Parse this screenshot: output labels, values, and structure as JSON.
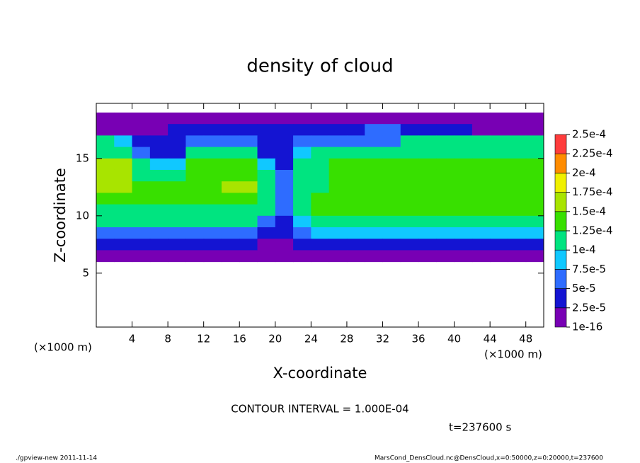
{
  "chart_data": {
    "type": "shaded-contour",
    "title": "density of cloud",
    "x_label": "X-coordinate",
    "y_label": "Z-coordinate",
    "x_unit": "(×1000 m)",
    "y_unit": "(×1000 m)",
    "contour_note": "CONTOUR INTERVAL = 1.000E-04",
    "time_note": "t=237600 s",
    "footer_left": "./gpview-new   2011-11-14",
    "footer_right": "MarsCond_DensCloud.nc@DensCloud,x=0:50000,z=0:20000,t=237600",
    "xlim": [
      0,
      50
    ],
    "ylim": [
      0.3,
      19.8
    ],
    "xticks": [
      4,
      8,
      12,
      16,
      20,
      24,
      28,
      32,
      36,
      40,
      44,
      48
    ],
    "yticks": [
      5,
      10,
      15
    ],
    "x": [
      1,
      3,
      5,
      7,
      9,
      11,
      13,
      15,
      17,
      19,
      21,
      23,
      25,
      27,
      29,
      31,
      33,
      35,
      37,
      39,
      41,
      43,
      45,
      47,
      49
    ],
    "z": [
      18.5,
      17.5,
      16.5,
      15.5,
      14.5,
      13.5,
      12.5,
      11.5,
      10.5,
      9.5,
      8.5,
      7.5,
      6.5
    ],
    "values": [
      [
        1e-05,
        1e-05,
        1e-05,
        1e-05,
        1e-05,
        1e-05,
        1e-05,
        1e-05,
        1e-05,
        1e-05,
        1e-05,
        1e-05,
        1e-05,
        1e-05,
        1e-05,
        1e-05,
        1e-05,
        1e-05,
        1e-05,
        1e-05,
        1e-05,
        1e-05,
        1e-05,
        1e-05,
        1e-05
      ],
      [
        1e-05,
        1e-05,
        1e-05,
        1e-05,
        3e-05,
        3e-05,
        3e-05,
        3e-05,
        3e-05,
        3e-05,
        3e-05,
        4e-05,
        4e-05,
        4e-05,
        4e-05,
        6e-05,
        6e-05,
        3e-05,
        3e-05,
        3e-05,
        3e-05,
        1e-05,
        1e-05,
        1e-05,
        1e-05
      ],
      [
        0.0001,
        8e-05,
        4e-05,
        4e-05,
        4e-05,
        7e-05,
        7e-05,
        7e-05,
        7e-05,
        4e-05,
        4e-05,
        7e-05,
        7e-05,
        7e-05,
        7e-05,
        7e-05,
        7e-05,
        0.0001,
        0.0001,
        0.0001,
        0.0001,
        0.0001,
        0.0001,
        0.0001,
        0.0001
      ],
      [
        0.00012,
        0.00012,
        5e-05,
        4e-05,
        4e-05,
        0.00011,
        0.00011,
        0.00011,
        0.00011,
        4e-05,
        4e-05,
        8e-05,
        0.0001,
        0.0001,
        0.0001,
        0.00012,
        0.00012,
        0.00012,
        0.00012,
        0.00012,
        0.00012,
        0.00012,
        0.00012,
        0.00012,
        0.00012
      ],
      [
        0.00015,
        0.00015,
        0.00012,
        8e-05,
        8e-05,
        0.00013,
        0.00013,
        0.00013,
        0.00013,
        8e-05,
        4e-05,
        0.00011,
        0.00011,
        0.00013,
        0.00013,
        0.00013,
        0.00013,
        0.00013,
        0.00013,
        0.00013,
        0.00013,
        0.00013,
        0.00013,
        0.00013,
        0.00013
      ],
      [
        0.00016,
        0.00016,
        0.00012,
        0.00012,
        0.00012,
        0.00014,
        0.00014,
        0.00014,
        0.00014,
        0.0001,
        5e-05,
        0.00012,
        0.00012,
        0.00014,
        0.00014,
        0.00014,
        0.00014,
        0.00014,
        0.00014,
        0.00014,
        0.00014,
        0.00014,
        0.00014,
        0.00014,
        0.00014
      ],
      [
        0.00016,
        0.00016,
        0.00013,
        0.00013,
        0.00013,
        0.00014,
        0.00014,
        0.00015,
        0.00015,
        0.00011,
        6e-05,
        0.00012,
        0.00012,
        0.00014,
        0.00014,
        0.00014,
        0.00014,
        0.00014,
        0.00014,
        0.00014,
        0.00014,
        0.00014,
        0.00014,
        0.00014,
        0.00014
      ],
      [
        0.00014,
        0.00014,
        0.00014,
        0.00013,
        0.00013,
        0.00013,
        0.00013,
        0.00013,
        0.00013,
        0.00011,
        7e-05,
        0.00012,
        0.00014,
        0.00014,
        0.00014,
        0.00014,
        0.00014,
        0.00014,
        0.00014,
        0.00014,
        0.00014,
        0.00014,
        0.00014,
        0.00014,
        0.00014
      ],
      [
        0.00012,
        0.00012,
        0.00012,
        0.00012,
        0.00012,
        0.00012,
        0.00012,
        0.00012,
        0.00012,
        0.0001,
        6e-05,
        0.00011,
        0.00013,
        0.00014,
        0.00014,
        0.00014,
        0.00014,
        0.00014,
        0.00014,
        0.00014,
        0.00014,
        0.00014,
        0.00014,
        0.00014,
        0.00014
      ],
      [
        0.00011,
        0.00011,
        0.0001,
        0.0001,
        0.0001,
        0.0001,
        0.0001,
        0.0001,
        0.0001,
        7e-05,
        4e-05,
        9e-05,
        0.00011,
        0.00012,
        0.00012,
        0.00012,
        0.00012,
        0.00012,
        0.00012,
        0.00012,
        0.00012,
        0.00012,
        0.00012,
        0.00012,
        0.00012
      ],
      [
        7e-05,
        7e-05,
        7e-05,
        7e-05,
        7e-05,
        7e-05,
        7e-05,
        7e-05,
        7e-05,
        3e-05,
        3e-05,
        7e-05,
        8e-05,
        8e-05,
        8e-05,
        8e-05,
        8e-05,
        8e-05,
        8e-05,
        8e-05,
        8e-05,
        8e-05,
        8e-05,
        8e-05,
        8e-05
      ],
      [
        4e-05,
        4e-05,
        4e-05,
        4e-05,
        4e-05,
        4e-05,
        4e-05,
        4e-05,
        4e-05,
        2e-05,
        2e-05,
        4e-05,
        4e-05,
        4e-05,
        4e-05,
        4e-05,
        4e-05,
        4e-05,
        4e-05,
        4e-05,
        4e-05,
        4e-05,
        4e-05,
        4e-05,
        4e-05
      ],
      [
        1e-05,
        1e-05,
        1e-05,
        1e-05,
        1e-05,
        1e-05,
        1e-05,
        1e-05,
        1e-05,
        1e-05,
        1e-05,
        1e-05,
        1e-05,
        1e-05,
        1e-05,
        1e-05,
        1e-05,
        1e-05,
        1e-05,
        1e-05,
        1e-05,
        1e-05,
        1e-05,
        1e-05,
        1e-05
      ]
    ],
    "colorbar_ticks": [
      {
        "value": 1e-16,
        "label": "1e-16"
      },
      {
        "value": 2.5e-05,
        "label": "2.5e-5"
      },
      {
        "value": 5e-05,
        "label": "5e-5"
      },
      {
        "value": 7.5e-05,
        "label": "7.5e-5"
      },
      {
        "value": 0.0001,
        "label": "1e-4"
      },
      {
        "value": 0.000125,
        "label": "1.25e-4"
      },
      {
        "value": 0.00015,
        "label": "1.5e-4"
      },
      {
        "value": 0.000175,
        "label": "1.75e-4"
      },
      {
        "value": 0.0002,
        "label": "2e-4"
      },
      {
        "value": 0.000225,
        "label": "2.25e-4"
      },
      {
        "value": 0.00025,
        "label": "2.5e-4"
      }
    ],
    "colors": [
      "#7800b4",
      "#1414d2",
      "#2e6cff",
      "#10c8ff",
      "#00e480",
      "#38e000",
      "#a8e400",
      "#f0f000",
      "#ff8c00",
      "#ff3c3c"
    ]
  }
}
